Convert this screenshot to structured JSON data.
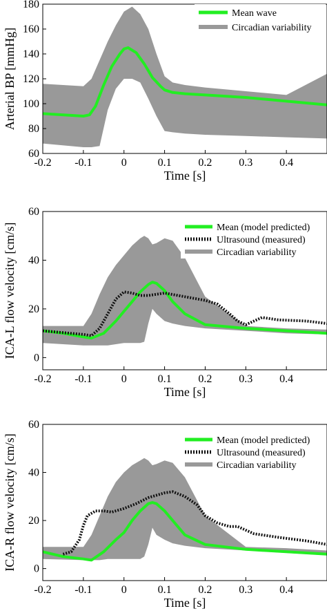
{
  "colors": {
    "mean": "#22ee22",
    "band": "#999999",
    "ultrasound": "#111111"
  },
  "chart_data": [
    {
      "type": "area",
      "xlabel": "Time [s]",
      "ylabel": "Arterial BP [mmHg]",
      "xlim": [
        -0.2,
        0.5
      ],
      "ylim": [
        60,
        180
      ],
      "xticks": [
        -0.2,
        -0.1,
        0,
        0.1,
        0.2,
        0.3,
        0.4
      ],
      "xtick_labels": [
        "-0.2",
        "-0.1",
        "0",
        "0.1",
        "0.2",
        "0.3",
        "0.4"
      ],
      "yticks": [
        60,
        80,
        100,
        120,
        140,
        160,
        180
      ],
      "ytick_labels": [
        "60",
        "80",
        "100",
        "120",
        "140",
        "160",
        "180"
      ],
      "grid": false,
      "legend_position": "top-right",
      "series": [
        {
          "name": "Mean wave",
          "kind": "line",
          "x": [
            -0.2,
            -0.1,
            -0.085,
            -0.07,
            -0.05,
            -0.03,
            -0.01,
            0.0,
            0.01,
            0.03,
            0.05,
            0.07,
            0.09,
            0.1,
            0.12,
            0.15,
            0.2,
            0.3,
            0.4,
            0.5
          ],
          "y": [
            92,
            90,
            91,
            98,
            115,
            130,
            140,
            144,
            145,
            141,
            132,
            121,
            114,
            111,
            109,
            108,
            107,
            105,
            102,
            99
          ]
        },
        {
          "name": "Circadian variability",
          "kind": "band",
          "x": [
            -0.2,
            -0.1,
            -0.08,
            -0.06,
            -0.04,
            -0.02,
            0.0,
            0.02,
            0.04,
            0.06,
            0.08,
            0.1,
            0.12,
            0.15,
            0.2,
            0.3,
            0.4,
            0.5
          ],
          "lower": [
            68,
            65,
            65,
            66,
            95,
            112,
            120,
            120,
            117,
            104,
            90,
            78,
            77,
            76,
            75,
            74,
            73,
            72
          ],
          "upper": [
            116,
            114,
            120,
            135,
            150,
            163,
            174,
            178,
            172,
            160,
            140,
            122,
            117,
            115,
            113,
            110,
            107,
            124
          ]
        }
      ]
    },
    {
      "type": "area",
      "xlabel": "Time [s]",
      "ylabel": "ICA-L flow velocity [cm/s]",
      "xlim": [
        -0.2,
        0.5
      ],
      "ylim": [
        -5,
        60
      ],
      "xticks": [
        -0.2,
        -0.1,
        0,
        0.1,
        0.2,
        0.3,
        0.4
      ],
      "xtick_labels": [
        "-0.2",
        "-0.1",
        "0",
        "0.1",
        "0.2",
        "0.3",
        "0.4"
      ],
      "yticks": [
        0,
        20,
        40,
        60
      ],
      "ytick_labels": [
        "0",
        "20",
        "40",
        "60"
      ],
      "grid": false,
      "legend_position": "top-right",
      "series": [
        {
          "name": "Mean (model predicted)",
          "kind": "line",
          "x": [
            -0.2,
            -0.15,
            -0.1,
            -0.08,
            -0.05,
            -0.02,
            0.0,
            0.02,
            0.04,
            0.06,
            0.07,
            0.08,
            0.1,
            0.12,
            0.15,
            0.2,
            0.3,
            0.4,
            0.5
          ],
          "y": [
            11,
            10,
            8.5,
            8,
            10,
            15,
            19,
            23,
            27,
            30,
            31,
            30.5,
            27.5,
            23,
            18,
            13.5,
            12,
            11,
            10
          ]
        },
        {
          "name": "Ultrasound (measured)",
          "kind": "dotted",
          "x": [
            -0.2,
            -0.1,
            -0.08,
            -0.06,
            -0.04,
            -0.02,
            0.0,
            0.02,
            0.04,
            0.06,
            0.1,
            0.15,
            0.2,
            0.23,
            0.26,
            0.28,
            0.3,
            0.32,
            0.34,
            0.38,
            0.45,
            0.5
          ],
          "y": [
            11,
            9.5,
            9,
            12,
            18,
            24,
            27,
            26.5,
            25.5,
            25.5,
            26.5,
            25,
            23.5,
            22,
            18,
            15,
            13.5,
            15,
            16.5,
            15.5,
            15,
            14
          ]
        },
        {
          "name": "Circadian variability",
          "kind": "band",
          "x": [
            -0.2,
            -0.1,
            -0.08,
            -0.06,
            -0.04,
            -0.02,
            0.0,
            0.02,
            0.04,
            0.05,
            0.06,
            0.07,
            0.08,
            0.1,
            0.12,
            0.15,
            0.2,
            0.3,
            0.4,
            0.5
          ],
          "lower": [
            6,
            5,
            5,
            5,
            5,
            5.5,
            6,
            6,
            6,
            6.5,
            14,
            20,
            18,
            15,
            14,
            13,
            12,
            11,
            10,
            9.5
          ],
          "upper": [
            13,
            13,
            18,
            26,
            33,
            38,
            42,
            46,
            49,
            50,
            49,
            46.5,
            47,
            49,
            48,
            41,
            25,
            13,
            12,
            11.5
          ]
        }
      ]
    },
    {
      "type": "area",
      "xlabel": "Time [s]",
      "ylabel": "ICA-R flow velocity [cm/s]",
      "xlim": [
        -0.2,
        0.5
      ],
      "ylim": [
        -5,
        60
      ],
      "xticks": [
        -0.2,
        -0.1,
        0,
        0.1,
        0.2,
        0.3,
        0.4
      ],
      "xtick_labels": [
        "-0.2",
        "-0.1",
        "0",
        "0.1",
        "0.2",
        "0.3",
        "0.4"
      ],
      "yticks": [
        0,
        20,
        40,
        60
      ],
      "ytick_labels": [
        "0",
        "20",
        "40",
        "60"
      ],
      "grid": false,
      "legend_position": "top-right",
      "series": [
        {
          "name": "Mean (model predicted)",
          "kind": "line",
          "x": [
            -0.2,
            -0.15,
            -0.1,
            -0.08,
            -0.05,
            -0.02,
            0.0,
            0.02,
            0.04,
            0.06,
            0.07,
            0.08,
            0.1,
            0.12,
            0.15,
            0.2,
            0.3,
            0.4,
            0.5
          ],
          "y": [
            7,
            5,
            4,
            3.5,
            7,
            12,
            15,
            20,
            24,
            27,
            27.5,
            27,
            24,
            20,
            14,
            10,
            8,
            7,
            6
          ]
        },
        {
          "name": "Ultrasound (measured)",
          "kind": "dotted",
          "x": [
            -0.15,
            -0.13,
            -0.11,
            -0.1,
            -0.09,
            -0.07,
            -0.05,
            -0.03,
            0.0,
            0.03,
            0.06,
            0.1,
            0.12,
            0.15,
            0.18,
            0.2,
            0.23,
            0.26,
            0.28,
            0.32,
            0.38,
            0.45,
            0.5
          ],
          "y": [
            6,
            7,
            12,
            18,
            22,
            24,
            24,
            23.5,
            25,
            27,
            29.5,
            31.5,
            32,
            30,
            26.5,
            22,
            19,
            17.5,
            17.5,
            14.5,
            13,
            11.5,
            10
          ]
        },
        {
          "name": "Circadian variability",
          "kind": "band",
          "x": [
            -0.2,
            -0.1,
            -0.08,
            -0.06,
            -0.04,
            -0.02,
            0.0,
            0.02,
            0.04,
            0.05,
            0.06,
            0.07,
            0.08,
            0.1,
            0.12,
            0.15,
            0.2,
            0.3,
            0.4,
            0.5
          ],
          "lower": [
            4,
            3.5,
            3.5,
            3.5,
            4,
            4,
            4,
            4,
            4,
            5,
            10,
            17,
            14,
            12,
            10.5,
            9.5,
            8.5,
            7.5,
            6.5,
            5.5
          ],
          "upper": [
            9,
            9,
            14,
            22,
            30,
            36,
            40,
            43,
            45,
            46,
            45,
            43,
            43.5,
            45,
            44,
            38,
            22,
            9,
            8.5,
            7.5
          ]
        }
      ]
    }
  ]
}
